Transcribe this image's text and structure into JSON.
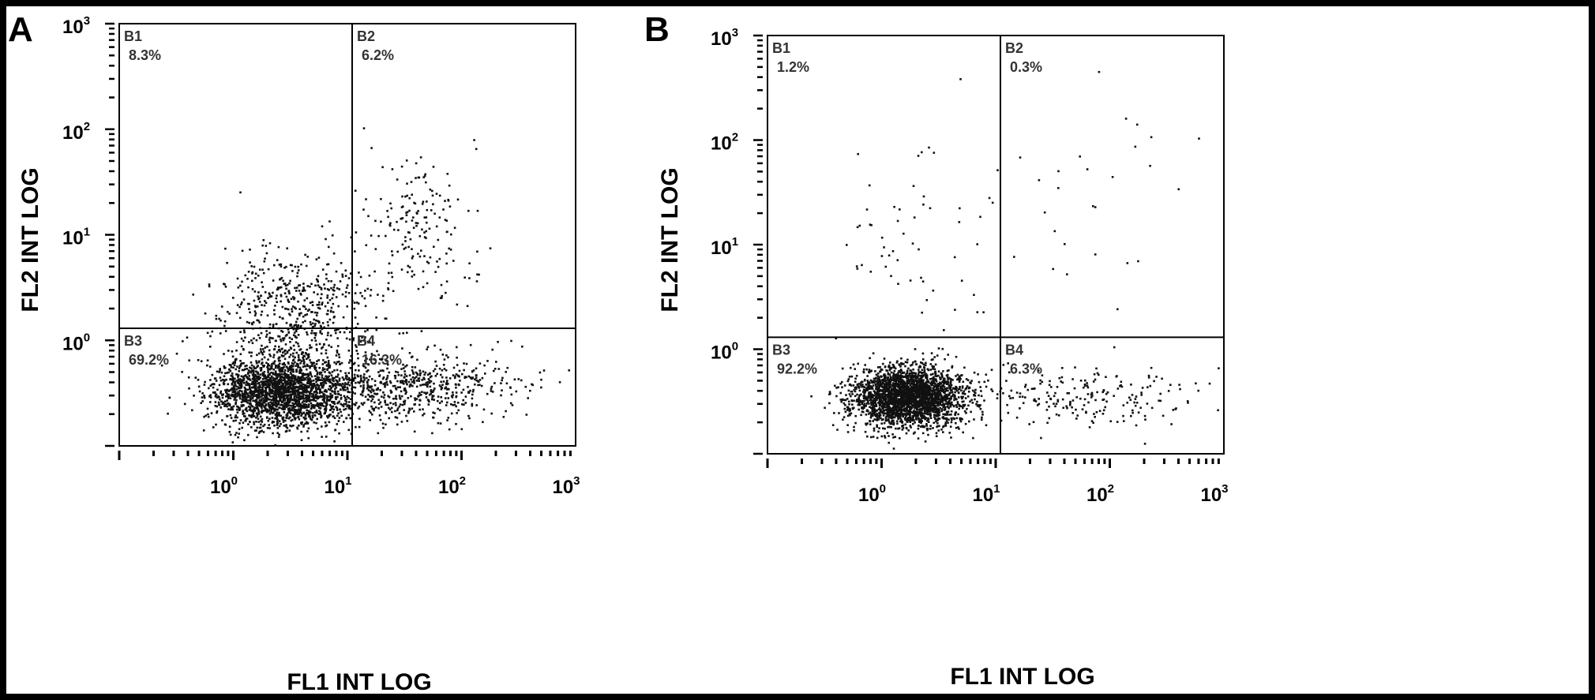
{
  "panels": [
    {
      "letter": "A",
      "xlabel": "FL1 INT LOG",
      "ylabel": "FL2 INT LOG",
      "quadrants": [
        {
          "name": "B1",
          "percent": "8.3%"
        },
        {
          "name": "B2",
          "percent": "6.2%"
        },
        {
          "name": "B3",
          "percent": "69.2%"
        },
        {
          "name": "B4",
          "percent": "16.3%"
        }
      ]
    },
    {
      "letter": "B",
      "xlabel": "FL1 INT LOG",
      "ylabel": "FL2 INT LOG",
      "quadrants": [
        {
          "name": "B1",
          "percent": "1.2%"
        },
        {
          "name": "B2",
          "percent": "0.3%"
        },
        {
          "name": "B3",
          "percent": "92.2%"
        },
        {
          "name": "B4",
          "percent": "6.3%"
        }
      ]
    }
  ],
  "chart_data": [
    {
      "type": "scatter",
      "scale": "log",
      "xlabel": "FL1 INT LOG",
      "ylabel": "FL2 INT LOG",
      "xlim": [
        0.1,
        1000
      ],
      "ylim": [
        0.1,
        1000
      ],
      "xticks": [
        {
          "base": "10",
          "exp": "0"
        },
        {
          "base": "10",
          "exp": "1"
        },
        {
          "base": "10",
          "exp": "2"
        },
        {
          "base": "10",
          "exp": "3"
        }
      ],
      "yticks": [
        {
          "base": "10",
          "exp": "0"
        },
        {
          "base": "10",
          "exp": "1"
        },
        {
          "base": "10",
          "exp": "2"
        },
        {
          "base": "10",
          "exp": "3"
        }
      ],
      "gate": {
        "x": 11,
        "y": 1.3
      },
      "quadrant_percent": {
        "B1": 8.3,
        "B2": 6.2,
        "B3": 69.2,
        "B4": 16.3
      },
      "n_points": 3600,
      "seed": 11,
      "clusters": [
        {
          "weight": 0.62,
          "x_center": 2.6,
          "x_sd": 0.3,
          "y_center": 0.33,
          "y_sd": 0.17
        },
        {
          "weight": 0.16,
          "x_center": 3.5,
          "x_sd": 0.35,
          "y_center": 1.8,
          "y_sd": 0.3
        },
        {
          "weight": 0.17,
          "x_center": 38,
          "x_sd": 0.45,
          "y_center": 0.35,
          "y_sd": 0.16
        },
        {
          "weight": 0.05,
          "x_center": 40,
          "x_sd": 0.28,
          "y_center": 12,
          "y_sd": 0.35
        }
      ]
    },
    {
      "type": "scatter",
      "scale": "log",
      "xlabel": "FL1 INT LOG",
      "ylabel": "FL2 INT LOG",
      "xlim": [
        0.1,
        1000
      ],
      "ylim": [
        0.1,
        1000
      ],
      "xticks": [
        {
          "base": "10",
          "exp": "0"
        },
        {
          "base": "10",
          "exp": "1"
        },
        {
          "base": "10",
          "exp": "2"
        },
        {
          "base": "10",
          "exp": "3"
        }
      ],
      "yticks": [
        {
          "base": "10",
          "exp": "0"
        },
        {
          "base": "10",
          "exp": "1"
        },
        {
          "base": "10",
          "exp": "2"
        },
        {
          "base": "10",
          "exp": "3"
        }
      ],
      "gate": {
        "x": 11,
        "y": 1.3
      },
      "quadrant_percent": {
        "B1": 1.2,
        "B2": 0.3,
        "B3": 92.2,
        "B4": 6.3
      },
      "n_points": 3000,
      "seed": 23,
      "clusters": [
        {
          "weight": 0.9,
          "x_center": 1.7,
          "x_sd": 0.24,
          "y_center": 0.35,
          "y_sd": 0.14
        },
        {
          "weight": 0.07,
          "x_center": 60,
          "x_sd": 0.5,
          "y_center": 0.35,
          "y_sd": 0.14
        },
        {
          "weight": 0.02,
          "x_center": 2.5,
          "x_sd": 0.4,
          "y_center": 8,
          "y_sd": 0.5
        },
        {
          "weight": 0.01,
          "x_center": 60,
          "x_sd": 0.5,
          "y_center": 20,
          "y_sd": 0.6
        }
      ]
    }
  ]
}
